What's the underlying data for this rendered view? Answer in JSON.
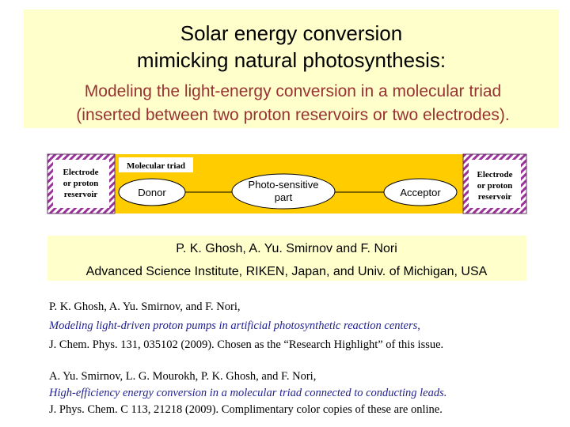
{
  "title": {
    "lines": [
      "Solar energy conversion",
      "mimicking natural photosynthesis:"
    ]
  },
  "subtitle": {
    "lines": [
      "Modeling the light-energy conversion in a molecular triad",
      "(inserted between two proton reservoirs or two electrodes)."
    ]
  },
  "diagram": {
    "left_reservoir": [
      "Electrode",
      "or proton",
      "reservoir"
    ],
    "triad_label": "Molecular triad",
    "donor": "Donor",
    "photo_sensitive": [
      "Photo-sensitive",
      "part"
    ],
    "acceptor": "Acceptor",
    "right_reservoir": [
      "Electrode",
      "or proton",
      "reservoir"
    ]
  },
  "authors": "P. K. Ghosh, A. Yu. Smirnov and F. Nori",
  "affiliation": "Advanced Science Institute, RIKEN, Japan, and Univ. of Michigan, USA",
  "references": [
    {
      "authors": "P. K. Ghosh,  A. Yu. Smirnov, and F. Nori,",
      "title": "Modeling light-driven proton pumps in artificial photosynthetic reaction centers,",
      "source": "J. Chem. Phys. 131, 035102 (2009).  Chosen as the “Research Highlight” of this issue."
    },
    {
      "authors": "A.  Yu. Smirnov, L. G. Mourokh, P. K. Ghosh, and F. Nori,",
      "title": "High-efficiency energy conversion in a molecular triad connected to conducting leads.",
      "source": "J. Phys. Chem. C 113, 21218  (2009).  Complimentary color copies of these are online."
    }
  ]
}
